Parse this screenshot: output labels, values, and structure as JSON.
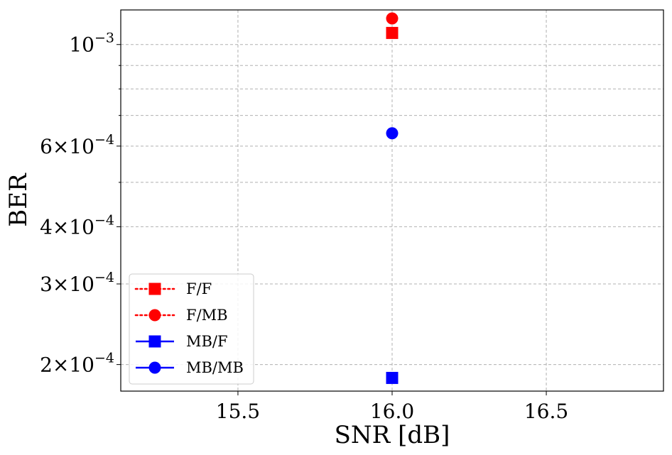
{
  "chart_data": {
    "type": "scatter",
    "xlabel": "SNR [dB]",
    "ylabel": "BER",
    "xlim": [
      15.12,
      16.88
    ],
    "ylim": [
      0.000175,
      0.00119
    ],
    "yscale": "log",
    "grid": true,
    "x_ticks": [
      15.5,
      16.0,
      16.5
    ],
    "x_tick_labels": [
      "15.5",
      "16.0",
      "16.5"
    ],
    "y_ticks": [
      {
        "value": 0.001,
        "mantissa": "",
        "exp": "−3"
      },
      {
        "value": 0.0006,
        "mantissa": "6",
        "exp": "−4"
      },
      {
        "value": 0.0004,
        "mantissa": "4",
        "exp": "−4"
      },
      {
        "value": 0.0003,
        "mantissa": "3",
        "exp": "−4"
      },
      {
        "value": 0.0002,
        "mantissa": "2",
        "exp": "−4"
      }
    ],
    "y_minor_ticks": [
      0.0005,
      0.0007,
      0.0008,
      0.0009
    ],
    "legend_position": "lower-left",
    "series": [
      {
        "name": "F/F",
        "color": "#ff0000",
        "marker": "square",
        "linestyle": "dotted",
        "x": [
          16.0
        ],
        "y": [
          0.00106
        ]
      },
      {
        "name": "F/MB",
        "color": "#ff0000",
        "marker": "circle",
        "linestyle": "dotted",
        "x": [
          16.0
        ],
        "y": [
          0.00114
        ]
      },
      {
        "name": "MB/F",
        "color": "#0000ff",
        "marker": "square",
        "linestyle": "solid",
        "x": [
          16.0
        ],
        "y": [
          0.000187
        ]
      },
      {
        "name": "MB/MB",
        "color": "#0000ff",
        "marker": "circle",
        "linestyle": "solid",
        "x": [
          16.0
        ],
        "y": [
          0.00064
        ]
      }
    ]
  }
}
